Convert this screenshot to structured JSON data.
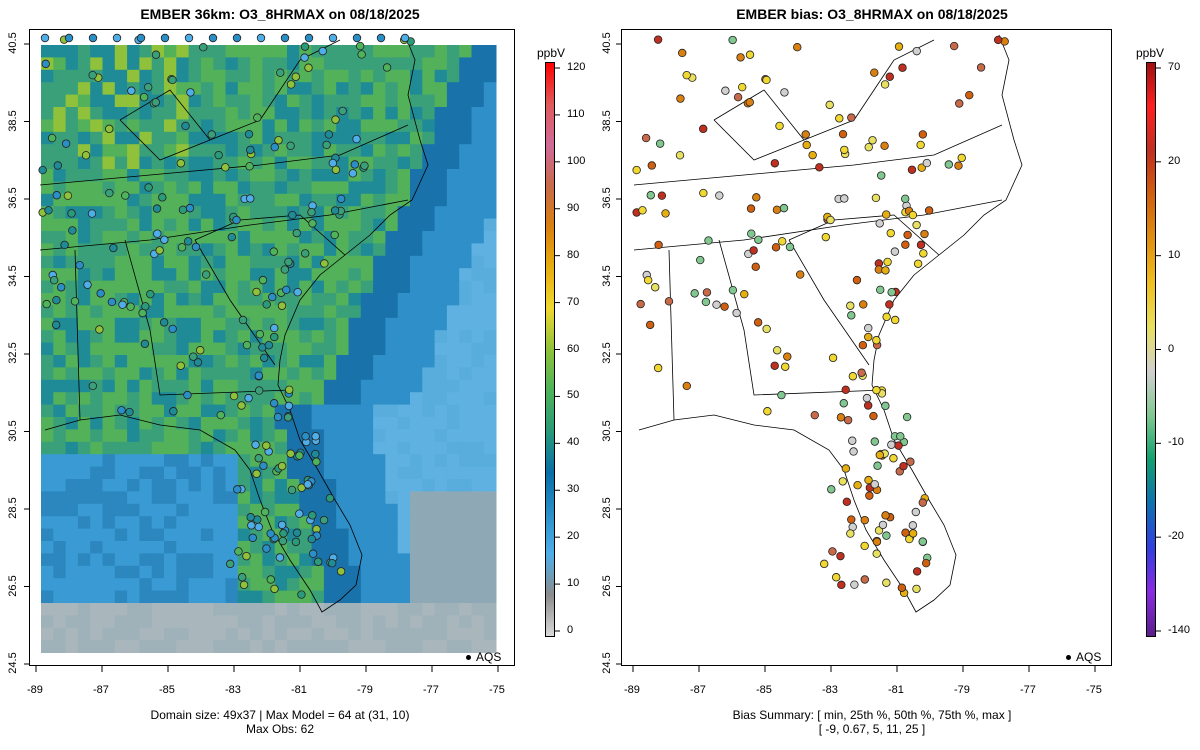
{
  "left_panel": {
    "title": "EMBER 36km: O3_8HRMAX on 08/18/2025",
    "caption_line1": "Domain size: 49x37 | Max Model = 64 at (31, 10)",
    "caption_line2": "Max Obs: 62",
    "legend": "AQS",
    "x_ticks": [
      "-89",
      "-87",
      "-85",
      "-83",
      "-81",
      "-79",
      "-77",
      "-75"
    ],
    "y_ticks": [
      "40.5",
      "38.5",
      "36.5",
      "34.5",
      "32.5",
      "30.5",
      "28.5",
      "26.5",
      "24.5"
    ],
    "colorbar": {
      "unit": "ppbV",
      "ticks": [
        "120",
        "110",
        "100",
        "90",
        "80",
        "70",
        "60",
        "50",
        "40",
        "30",
        "20",
        "10",
        "0"
      ],
      "colors": [
        "#d9d9d9",
        "#8c8c8c",
        "#4faee8",
        "#2b8fc7",
        "#0a6ea6",
        "#2a9a7a",
        "#4eb35a",
        "#8fc23a",
        "#f0d830",
        "#e7ae10",
        "#d98010",
        "#c86a4a",
        "#d06a9a",
        "#e05a5a",
        "#ff0000"
      ]
    }
  },
  "right_panel": {
    "title": "EMBER bias: O3_8HRMAX on 08/18/2025",
    "caption_line1": "Bias Summary: [ min, 25th %, 50th %, 75th %, max ]",
    "caption_line2": "[ -9,   0.67,   5,   11,   25 ]",
    "legend": "AQS",
    "x_ticks": [
      "-89",
      "-87",
      "-85",
      "-83",
      "-81",
      "-79",
      "-77",
      "-75"
    ],
    "y_ticks": [
      "40.5",
      "38.5",
      "36.5",
      "34.5",
      "32.5",
      "30.5",
      "28.5",
      "26.5",
      "24.5"
    ],
    "colorbar": {
      "unit": "ppbV",
      "ticks": [
        "70",
        "20",
        "10",
        "0",
        "-10",
        "-20",
        "-140"
      ],
      "colors": [
        "#5a1e8a",
        "#8a2be2",
        "#3040e0",
        "#1070b0",
        "#10a070",
        "#80c890",
        "#d0d0d0",
        "#e8e060",
        "#f0c020",
        "#e09010",
        "#d06010",
        "#c03020",
        "#ff2020",
        "#a01010"
      ]
    }
  }
}
